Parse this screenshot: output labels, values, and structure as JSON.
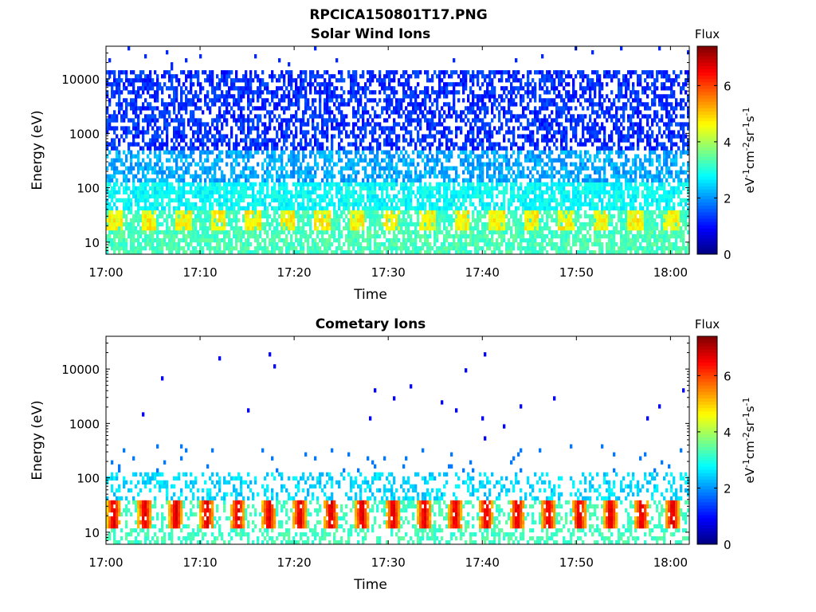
{
  "figure": {
    "filename": "RPCICA150801T17.PNG"
  },
  "chart_data": [
    {
      "type": "heatmap",
      "title": "Solar Wind Ions",
      "xlabel": "Time",
      "ylabel": "Energy (eV)",
      "y_scale": "log",
      "ylim": [
        6,
        40000
      ],
      "y_ticks": [
        10,
        100,
        1000,
        10000
      ],
      "y_tick_labels": [
        "10",
        "100",
        "1000",
        "10000"
      ],
      "x_ticks": [
        "17:00",
        "17:10",
        "17:20",
        "17:30",
        "17:40",
        "17:50",
        "18:00"
      ],
      "xlim_minutes": [
        0,
        62
      ],
      "colorbar": {
        "title": "Flux",
        "label_base": "eV",
        "label_units": [
          {
            "base": "eV",
            "exp": "-1"
          },
          {
            "base": "cm",
            "exp": "-2"
          },
          {
            "base": "sr",
            "exp": "-1"
          },
          {
            "base": "s",
            "exp": "-1"
          }
        ],
        "range": [
          0,
          7.4
        ],
        "ticks": [
          0,
          2,
          4,
          6
        ],
        "tick_labels": [
          "0",
          "2",
          "4",
          "6"
        ],
        "colormap": "jet"
      },
      "data_description": {
        "band_energy_range_eV": [
          18,
          40
        ],
        "band_level": 4.6,
        "band_period_minutes": 3.7,
        "low_energy_level": 3.0,
        "mid_energy_level": 2.2,
        "high_energy_level": 1.3,
        "sparse_max_energy_eV": 40000
      }
    },
    {
      "type": "heatmap",
      "title": "Cometary Ions",
      "xlabel": "Time",
      "ylabel": "Energy (eV)",
      "y_scale": "log",
      "ylim": [
        6,
        40000
      ],
      "y_ticks": [
        10,
        100,
        1000,
        10000
      ],
      "y_tick_labels": [
        "10",
        "100",
        "1000",
        "10000"
      ],
      "x_ticks": [
        "17:00",
        "17:10",
        "17:20",
        "17:30",
        "17:40",
        "17:50",
        "18:00"
      ],
      "xlim_minutes": [
        0,
        62
      ],
      "colorbar": {
        "title": "Flux",
        "label_units": [
          {
            "base": "eV",
            "exp": "-1"
          },
          {
            "base": "cm",
            "exp": "-2"
          },
          {
            "base": "sr",
            "exp": "-1"
          },
          {
            "base": "s",
            "exp": "-1"
          }
        ],
        "range": [
          0,
          7.4
        ],
        "ticks": [
          0,
          2,
          4,
          6
        ],
        "tick_labels": [
          "0",
          "2",
          "4",
          "6"
        ],
        "colormap": "jet"
      },
      "data_description": {
        "band_energy_range_eV": [
          11,
          40
        ],
        "band_peak_level": 6.4,
        "band_period_minutes": 3.3,
        "low_energy_level": 3.0,
        "scattered_level": 2.2,
        "sparse_dots_level": 0.9,
        "sparse_max_energy_eV": 20000
      }
    }
  ]
}
